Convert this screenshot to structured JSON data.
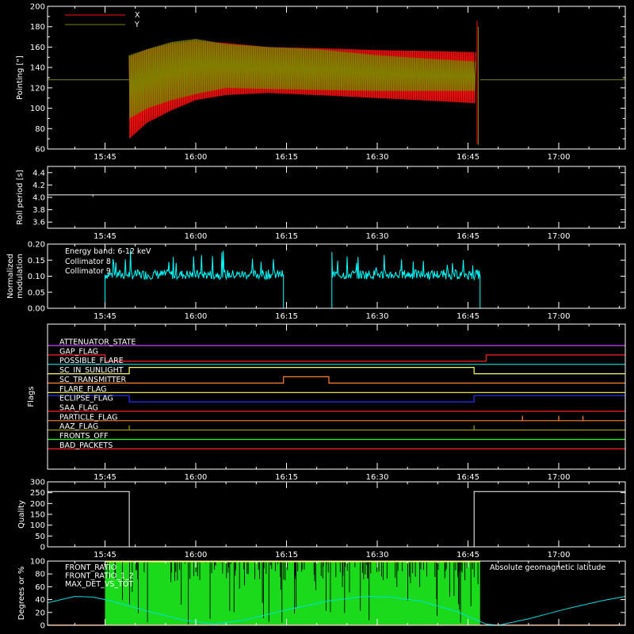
{
  "chart_data": [
    {
      "type": "line",
      "id": "pointing",
      "ylabel": "Pointing [\"]",
      "ylim": [
        60,
        200
      ],
      "yticks": [
        60,
        80,
        100,
        120,
        140,
        160,
        180,
        200
      ],
      "xticks": [
        "15:45",
        "16:00",
        "16:15",
        "16:30",
        "16:45",
        "17:00"
      ],
      "xtick_minutes": [
        45,
        60,
        75,
        90,
        105,
        120
      ],
      "xlim_minutes": [
        35.5,
        131
      ],
      "baseline": 128,
      "active_range_minutes": [
        49,
        107
      ],
      "legend": [
        {
          "name": "X",
          "color": "#ff1010"
        },
        {
          "name": "Y",
          "color": "#808000"
        }
      ],
      "series": [
        {
          "name": "X",
          "color": "#ff1010",
          "upper": [
            [
              49,
              150
            ],
            [
              52,
              158
            ],
            [
              56,
              163
            ],
            [
              60,
              166
            ],
            [
              65,
              164
            ],
            [
              72,
              160
            ],
            [
              80,
              159
            ],
            [
              90,
              157
            ],
            [
              100,
              156
            ],
            [
              106,
              155
            ]
          ],
          "lower": [
            [
              49,
              70
            ],
            [
              52,
              86
            ],
            [
              56,
              98
            ],
            [
              60,
              108
            ],
            [
              65,
              113
            ],
            [
              72,
              115
            ],
            [
              80,
              113
            ],
            [
              90,
              110
            ],
            [
              100,
              107
            ],
            [
              106,
              105
            ]
          ]
        },
        {
          "name": "Y",
          "color": "#808000",
          "upper": [
            [
              49,
              152
            ],
            [
              52,
              158
            ],
            [
              56,
              165
            ],
            [
              60,
              168
            ],
            [
              65,
              163
            ],
            [
              72,
              160
            ],
            [
              80,
              158
            ],
            [
              90,
              152
            ],
            [
              100,
              148
            ],
            [
              106,
              146
            ]
          ],
          "lower": [
            [
              49,
              90
            ],
            [
              52,
              100
            ],
            [
              56,
              108
            ],
            [
              60,
              114
            ],
            [
              65,
              120
            ],
            [
              72,
              119
            ],
            [
              80,
              118
            ],
            [
              90,
              117
            ],
            [
              100,
              117
            ],
            [
              106,
              117
            ]
          ]
        }
      ]
    },
    {
      "type": "line",
      "id": "roll",
      "ylabel": "Roll period [s]",
      "ylim": [
        3.5,
        4.5
      ],
      "yticks": [
        "3.6",
        "3.8",
        "4.0",
        "4.2",
        "4.4"
      ],
      "ytick_values": [
        3.6,
        3.8,
        4.0,
        4.2,
        4.4
      ],
      "value": 4.04,
      "glitch_minute": 43,
      "xticks": [
        "15:45",
        "16:00",
        "16:15",
        "16:30",
        "16:45",
        "17:00"
      ]
    },
    {
      "type": "line",
      "id": "modulation",
      "ylabel_lines": [
        "Normalized",
        "modulation"
      ],
      "ylim": [
        0,
        0.2
      ],
      "yticks": [
        "0.00",
        "0.05",
        "0.10",
        "0.15",
        "0.20"
      ],
      "ytick_values": [
        0,
        0.05,
        0.1,
        0.15,
        0.2
      ],
      "annotation": "Energy band: 6-12 keV",
      "legend": [
        {
          "name": "Collimator 8",
          "color": "#00ffff"
        },
        {
          "name": "Collimator 9",
          "color": "#ff00ff"
        }
      ],
      "segments_minutes": [
        [
          45,
          74.5
        ],
        [
          82.5,
          107
        ]
      ],
      "level": 0.105,
      "xticks": [
        "15:45",
        "16:00",
        "16:15",
        "16:30",
        "16:45",
        "17:00"
      ]
    },
    {
      "type": "line",
      "id": "flags",
      "ylabel": "Flags",
      "xticks": [
        "15:45",
        "16:00",
        "16:15",
        "16:30",
        "16:45",
        "17:00"
      ],
      "flags": [
        {
          "name": "ATTENUATOR_STATE",
          "color": "#cc44ff",
          "steps": [
            [
              35.5,
              0
            ],
            [
              131,
              0
            ]
          ]
        },
        {
          "name": "GAP_FLAG",
          "color": "#ff2020",
          "steps": [
            [
              35.5,
              0
            ],
            [
              45,
              0
            ],
            [
              45,
              -1
            ],
            [
              108,
              -1
            ],
            [
              108,
              0
            ],
            [
              131,
              0
            ]
          ]
        },
        {
          "name": "POSSIBLE_FLARE",
          "color": "#00e0e0",
          "steps": [
            [
              35.5,
              0
            ],
            [
              131,
              0
            ]
          ]
        },
        {
          "name": "SC_IN_SUNLIGHT",
          "color": "#ffff60",
          "steps": [
            [
              35.5,
              0
            ],
            [
              49,
              0
            ],
            [
              49,
              1
            ],
            [
              106,
              1
            ],
            [
              106,
              0
            ],
            [
              131,
              0
            ]
          ]
        },
        {
          "name": "SC_TRANSMITTER",
          "color": "#ff8030",
          "steps": [
            [
              35.5,
              0
            ],
            [
              74.5,
              0
            ],
            [
              74.5,
              1
            ],
            [
              82,
              1
            ],
            [
              82,
              0
            ],
            [
              131,
              0
            ]
          ]
        },
        {
          "name": "FLARE_FLAG",
          "color": "#ffff40",
          "steps": [
            [
              35.5,
              0
            ],
            [
              131,
              0
            ]
          ]
        },
        {
          "name": "ECLIPSE_FLAG",
          "color": "#2030ff",
          "steps": [
            [
              35.5,
              1
            ],
            [
              49,
              1
            ],
            [
              49,
              0
            ],
            [
              106,
              0
            ],
            [
              106,
              1
            ],
            [
              131,
              1
            ]
          ]
        },
        {
          "name": "SAA_FLAG",
          "color": "#ff2020",
          "steps": [
            [
              35.5,
              0
            ],
            [
              131,
              0
            ]
          ]
        },
        {
          "name": "PARTICLE_FLAG",
          "color": "#ff8030",
          "steps": [
            [
              35.5,
              0
            ],
            [
              131,
              0
            ]
          ],
          "spikes": [
            114,
            120,
            124
          ]
        },
        {
          "name": "AAZ_FLAG",
          "color": "#a09000",
          "steps": [
            [
              35.5,
              0
            ],
            [
              131,
              0
            ]
          ],
          "spikes": [
            49,
            106
          ]
        },
        {
          "name": "FRONTS_OFF",
          "color": "#20ff20",
          "steps": [
            [
              35.5,
              0
            ],
            [
              131,
              0
            ]
          ]
        },
        {
          "name": "BAD_PACKETS",
          "color": "#ff2020",
          "steps": [
            [
              35.5,
              0
            ],
            [
              131,
              0
            ]
          ]
        }
      ]
    },
    {
      "type": "line",
      "id": "quality",
      "ylabel": "Quality",
      "ylim": [
        0,
        300
      ],
      "yticks": [
        "0",
        "50",
        "100",
        "150",
        "200",
        "250",
        "300"
      ],
      "ytick_values": [
        0,
        50,
        100,
        150,
        200,
        250,
        300
      ],
      "steps": [
        [
          35.5,
          255
        ],
        [
          49,
          255
        ],
        [
          49,
          0
        ],
        [
          106,
          0
        ],
        [
          106,
          255
        ],
        [
          131,
          255
        ]
      ],
      "xticks": [
        "15:45",
        "16:00",
        "16:15",
        "16:30",
        "16:45",
        "17:00"
      ]
    },
    {
      "type": "line",
      "id": "ratios",
      "ylabel": "Degrees or %",
      "ylim": [
        0,
        100
      ],
      "yticks": [
        "0",
        "20",
        "40",
        "60",
        "80",
        "100"
      ],
      "ytick_values": [
        0,
        20,
        40,
        60,
        80,
        100
      ],
      "legend": [
        {
          "name": "FRONT_RATIO",
          "color": "#ffff00"
        },
        {
          "name": "FRONT_RATIO_1_2",
          "color": "#20ff20"
        },
        {
          "name": "MAX_DET_VS_TOT",
          "color": "#ff8030"
        }
      ],
      "annotation": "Absolute geomagnetic latitude",
      "annotation_color": "#00e0e0",
      "green_range_minutes": [
        45,
        107
      ],
      "latitude": [
        [
          35.5,
          35
        ],
        [
          40,
          45
        ],
        [
          43,
          44
        ],
        [
          46,
          38
        ],
        [
          52,
          22
        ],
        [
          58,
          8
        ],
        [
          63,
          2
        ],
        [
          68,
          8
        ],
        [
          75,
          24
        ],
        [
          82,
          38
        ],
        [
          88,
          45
        ],
        [
          92,
          44
        ],
        [
          97,
          38
        ],
        [
          103,
          22
        ],
        [
          108,
          2
        ],
        [
          110,
          0
        ],
        [
          115,
          10
        ],
        [
          121,
          25
        ],
        [
          127,
          38
        ],
        [
          131,
          45
        ]
      ]
    }
  ]
}
